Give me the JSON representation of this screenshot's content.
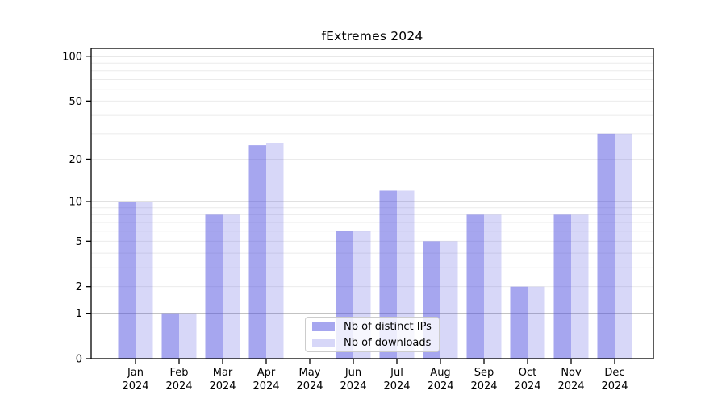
{
  "chart_data": {
    "type": "bar",
    "title": "fExtremes 2024",
    "xlabel": "",
    "ylabel": "",
    "categories": [
      "Jan",
      "Feb",
      "Mar",
      "Apr",
      "May",
      "Jun",
      "Jul",
      "Aug",
      "Sep",
      "Oct",
      "Nov",
      "Dec"
    ],
    "year_label": "2024",
    "series": [
      {
        "name": "Nb of distinct IPs",
        "values": [
          10,
          1,
          8,
          25,
          0,
          6,
          12,
          5,
          8,
          2,
          8,
          30
        ],
        "color_hex": "#4444dd",
        "alpha": 0.48
      },
      {
        "name": "Nb of downloads",
        "values": [
          10,
          1,
          8,
          26,
          0,
          6,
          12,
          5,
          8,
          2,
          8,
          30
        ],
        "color_hex": "#4444dd",
        "alpha": 0.21
      }
    ],
    "y_axis": {
      "scale": "log10(1+v)",
      "ticks": [
        0,
        1,
        2,
        5,
        10,
        20,
        50,
        100
      ],
      "ylim": [
        0,
        113
      ]
    },
    "grid": {
      "on": true,
      "minor_values": [
        2,
        3,
        4,
        5,
        6,
        7,
        8,
        9,
        20,
        30,
        40,
        50,
        60,
        70,
        80,
        90
      ],
      "major_values": [
        1,
        10,
        100
      ],
      "minor_color": "#ebebeb",
      "major_color": "#c3c3c3"
    },
    "legend": {
      "position": "bottom-center"
    },
    "axis_color": "#000000",
    "background_color": "#ffffff"
  }
}
